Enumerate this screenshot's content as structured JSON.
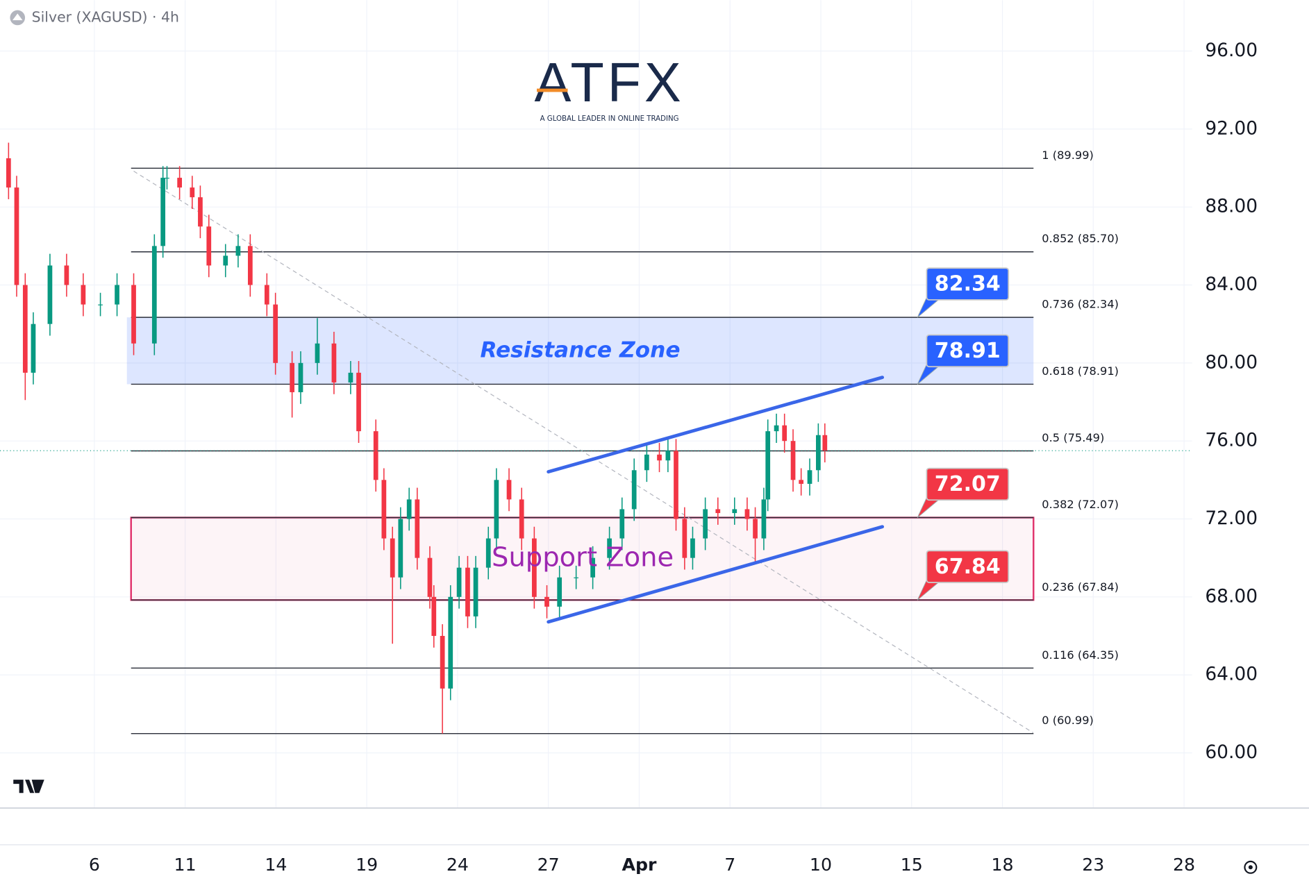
{
  "chart_data": {
    "type": "candlestick",
    "title": "Silver (XAGUSD) · 4h",
    "logo": {
      "text": "ATFX",
      "tagline": "A GLOBAL LEADER IN ONLINE TRADING"
    },
    "up_color": "#089981",
    "down_color": "#f23645",
    "grid": true,
    "ylim": [
      57.17,
      98.61
    ],
    "yticks": [
      {
        "value": 96,
        "label": "96.00"
      },
      {
        "value": 92,
        "label": "92.00"
      },
      {
        "value": 88,
        "label": "88.00"
      },
      {
        "value": 84,
        "label": "84.00"
      },
      {
        "value": 80,
        "label": "80.00"
      },
      {
        "value": 76,
        "label": "76.00"
      },
      {
        "value": 72,
        "label": "72.00"
      },
      {
        "value": 68,
        "label": "68.00"
      },
      {
        "value": 64,
        "label": "64.00"
      },
      {
        "value": 60,
        "label": "60.00"
      }
    ],
    "xlim": [
      -18.7,
      217.6
    ],
    "xticks": [
      {
        "value": 0,
        "label": "6"
      },
      {
        "value": 18,
        "label": "11"
      },
      {
        "value": 36,
        "label": "14"
      },
      {
        "value": 54,
        "label": "19"
      },
      {
        "value": 72,
        "label": "24"
      },
      {
        "value": 90,
        "label": "27"
      },
      {
        "value": 108,
        "label": "Apr"
      },
      {
        "value": 126,
        "label": "7"
      },
      {
        "value": 144,
        "label": "10"
      },
      {
        "value": 162,
        "label": "15"
      },
      {
        "value": 180,
        "label": "18"
      },
      {
        "value": 198,
        "label": "23"
      },
      {
        "value": 216,
        "label": "28"
      }
    ],
    "x": [
      -17.0,
      -15.4,
      -13.7,
      -12.1,
      -8.8,
      -5.5,
      -2.2,
      1.2,
      4.5,
      7.8,
      11.9,
      13.6,
      14.4,
      16.9,
      19.4,
      21.0,
      22.7,
      26.0,
      28.5,
      30.9,
      34.2,
      35.9,
      39.2,
      40.9,
      44.2,
      47.5,
      50.8,
      52.4,
      55.8,
      57.4,
      59.1,
      60.7,
      62.4,
      64.0,
      66.5,
      67.3,
      69.0,
      70.6,
      72.3,
      74.0,
      75.6,
      78.1,
      79.7,
      82.2,
      84.7,
      87.2,
      89.7,
      92.2,
      95.5,
      98.8,
      102.1,
      104.6,
      107.0,
      109.5,
      112.0,
      113.7,
      115.3,
      117.0,
      118.6,
      121.1,
      123.6,
      126.9,
      129.4,
      131.0,
      132.7,
      133.5,
      135.2,
      136.8,
      138.5,
      140.1,
      141.8,
      143.5,
      144.8
    ],
    "open": [
      90.5,
      89,
      84,
      79.5,
      82,
      85,
      84,
      83,
      83,
      84,
      81,
      86,
      89.5,
      89.5,
      89,
      88.5,
      87,
      85,
      85.5,
      86,
      84,
      83,
      80,
      78.5,
      80,
      81,
      79,
      79.5,
      76.5,
      74,
      71,
      69,
      72,
      73,
      70,
      68,
      66,
      63.3,
      68,
      69.5,
      67,
      69.5,
      71,
      74,
      73,
      71,
      68,
      67.5,
      69,
      69,
      70,
      71,
      72.5,
      74.5,
      75.3,
      75,
      75.5,
      72,
      70,
      71,
      72.5,
      72.3,
      72.5,
      72,
      71,
      73,
      76.5,
      76.8,
      76,
      74,
      73.8,
      74.5,
      76.3
    ],
    "high": [
      91.3,
      89.6,
      84.6,
      82.6,
      85.6,
      85.6,
      84.6,
      83.6,
      84.6,
      84.6,
      86.6,
      90.1,
      90.1,
      90.1,
      89.6,
      89.1,
      87.6,
      86.1,
      86.6,
      86.6,
      84.6,
      83.6,
      80.6,
      80.6,
      82.3,
      81.6,
      80.1,
      80.1,
      77.1,
      74.6,
      71.6,
      72.6,
      73.6,
      73.6,
      70.6,
      68.6,
      66.6,
      68.6,
      70.1,
      70.1,
      70.1,
      71.6,
      74.6,
      74.6,
      73.6,
      71.6,
      68.6,
      69.6,
      69.6,
      70.6,
      71.6,
      73.1,
      75.1,
      75.9,
      75.9,
      76.1,
      76.1,
      72.6,
      71.6,
      73.1,
      73.1,
      73.1,
      73.1,
      72.6,
      73.6,
      77.1,
      77.4,
      77.4,
      76.6,
      74.6,
      75.1,
      76.9,
      76.9
    ],
    "low": [
      88.4,
      83.4,
      78.1,
      78.9,
      81.4,
      83.4,
      82.4,
      82.4,
      82.4,
      80.4,
      80.4,
      85.4,
      88.9,
      88.4,
      87.9,
      86.4,
      84.4,
      84.4,
      84.9,
      83.4,
      82.4,
      79.4,
      77.2,
      77.9,
      79.4,
      78.4,
      78.4,
      75.9,
      73.4,
      70.4,
      65.6,
      68.4,
      71.4,
      69.4,
      67.4,
      65.4,
      60.99,
      62.7,
      67.4,
      66.4,
      66.4,
      68.9,
      70.4,
      72.4,
      70.4,
      67.4,
      66.9,
      66.9,
      68.4,
      68.4,
      69.4,
      70.4,
      71.9,
      73.9,
      74.4,
      74.4,
      71.4,
      69.4,
      69.4,
      70.4,
      71.7,
      71.7,
      71.4,
      69.8,
      70.4,
      72.4,
      75.9,
      75.4,
      73.4,
      73.2,
      73.2,
      73.9,
      74.9
    ],
    "close": [
      89,
      84,
      79.5,
      82,
      85,
      84,
      83,
      83,
      84,
      81,
      86,
      89.5,
      89.5,
      89,
      88.5,
      87,
      85,
      85.5,
      86,
      84,
      83,
      80,
      78.5,
      80,
      81,
      79,
      79.5,
      76.5,
      74,
      71,
      69,
      72,
      73,
      70,
      68,
      66,
      63.3,
      68,
      69.5,
      67,
      69.5,
      71,
      74,
      73,
      71,
      68,
      67.5,
      69,
      69,
      70,
      71,
      72.5,
      74.5,
      75.3,
      75,
      75.5,
      72,
      70,
      71,
      72.5,
      72.3,
      72.5,
      72,
      71,
      73,
      76.5,
      76.8,
      76,
      74,
      73.8,
      74.5,
      76.3,
      75.5
    ],
    "fib_levels": [
      {
        "label": "1 (89.99)",
        "value": 89.99
      },
      {
        "label": "0.852 (85.70)",
        "value": 85.7
      },
      {
        "label": "0.736 (82.34)",
        "value": 82.34
      },
      {
        "label": "0.618 (78.91)",
        "value": 78.91
      },
      {
        "label": "0.5 (75.49)",
        "value": 75.49
      },
      {
        "label": "0.382 (72.07)",
        "value": 72.07
      },
      {
        "label": "0.236 (67.84)",
        "value": 67.84
      },
      {
        "label": "0.116 (64.35)",
        "value": 64.35
      },
      {
        "label": "0 (60.99)",
        "value": 60.99
      }
    ],
    "zones": [
      {
        "name": "Resistance Zone",
        "from": 78.91,
        "to": 82.34,
        "color": "#2962ff"
      },
      {
        "name": "Support Zone",
        "from": 67.84,
        "to": 72.07,
        "color": "#e0306a"
      }
    ],
    "price_tags": [
      {
        "value": 82.34,
        "color": "#2962ff"
      },
      {
        "value": 78.91,
        "color": "#2962ff"
      },
      {
        "value": 72.07,
        "color": "#f23645"
      },
      {
        "value": 67.84,
        "color": "#f23645"
      }
    ],
    "channel": {
      "color": "#3a66e8",
      "upper": {
        "x": [
          90.0,
          156.2
        ],
        "y": [
          74.42,
          79.26
        ]
      },
      "lower": {
        "x": [
          90.0,
          156.2
        ],
        "y": [
          66.72,
          71.6
        ]
      }
    },
    "trendline": {
      "x": [
        7.8,
        186.1
      ],
      "y": [
        89.84,
        61.03
      ]
    }
  }
}
